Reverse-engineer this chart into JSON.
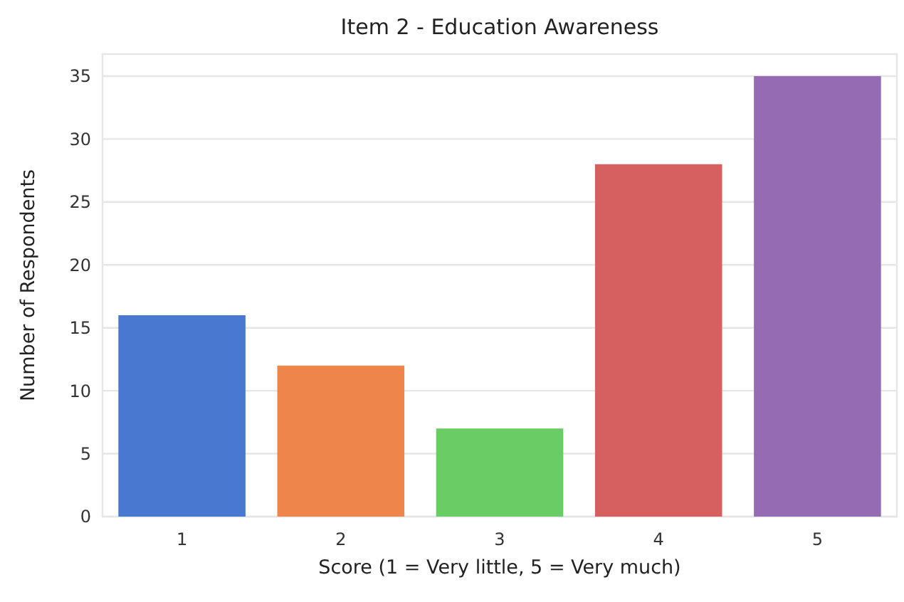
{
  "chart_data": {
    "type": "bar",
    "title": "Item 2 - Education Awareness",
    "xlabel": "Score (1 = Very little, 5 = Very much)",
    "ylabel": "Number of Respondents",
    "categories": [
      "1",
      "2",
      "3",
      "4",
      "5"
    ],
    "values": [
      16,
      12,
      7,
      28,
      35
    ],
    "colors": [
      "#4878d0",
      "#ee854a",
      "#6acc64",
      "#d65f5f",
      "#956cb4"
    ],
    "ylim": [
      0,
      36.75
    ],
    "yticks": [
      0,
      5,
      10,
      15,
      20,
      25,
      30,
      35
    ],
    "grid": "y"
  }
}
